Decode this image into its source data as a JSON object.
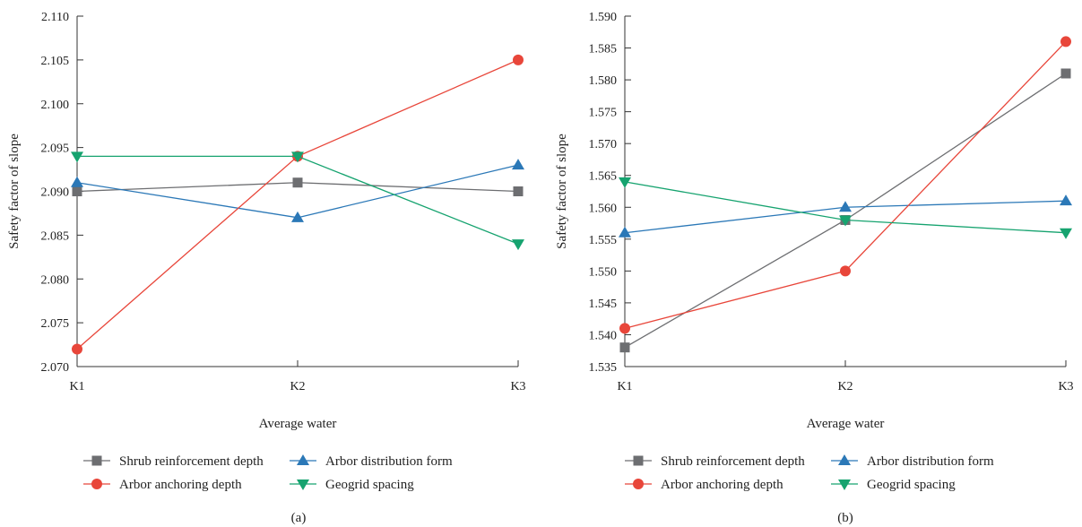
{
  "chart_data": [
    {
      "type": "line",
      "panel_label": "(a)",
      "xlabel": "Average water",
      "ylabel": "Safety factor of slope",
      "categories": [
        "K1",
        "K2",
        "K3"
      ],
      "ylim": [
        2.07,
        2.11
      ],
      "yticks": [
        "2.070",
        "2.075",
        "2.080",
        "2.085",
        "2.090",
        "2.095",
        "2.100",
        "2.105",
        "2.110"
      ],
      "grid": false,
      "legend_position": "bottom",
      "series": [
        {
          "name": "Shrub reinforcement depth",
          "values": [
            2.09,
            2.091,
            2.09
          ],
          "color": "#6d6e71",
          "marker": "square"
        },
        {
          "name": "Arbor distribution form",
          "values": [
            2.091,
            2.087,
            2.093
          ],
          "color": "#2b78b7",
          "marker": "triangle-up"
        },
        {
          "name": "Arbor anchoring depth",
          "values": [
            2.072,
            2.094,
            2.105
          ],
          "color": "#e8463a",
          "marker": "circle"
        },
        {
          "name": "Geogrid spacing",
          "values": [
            2.094,
            2.094,
            2.084
          ],
          "color": "#16a36f",
          "marker": "triangle-down"
        }
      ]
    },
    {
      "type": "line",
      "panel_label": "(b)",
      "xlabel": "Average water",
      "ylabel": "Safety factor of slope",
      "categories": [
        "K1",
        "K2",
        "K3"
      ],
      "ylim": [
        1.535,
        1.59
      ],
      "yticks": [
        "1.535",
        "1.540",
        "1.545",
        "1.550",
        "1.555",
        "1.560",
        "1.565",
        "1.570",
        "1.575",
        "1.580",
        "1.585",
        "1.590"
      ],
      "grid": false,
      "legend_position": "bottom",
      "series": [
        {
          "name": "Shrub reinforcement depth",
          "values": [
            1.538,
            1.558,
            1.581
          ],
          "color": "#6d6e71",
          "marker": "square"
        },
        {
          "name": "Arbor distribution form",
          "values": [
            1.556,
            1.56,
            1.561
          ],
          "color": "#2b78b7",
          "marker": "triangle-up"
        },
        {
          "name": "Arbor anchoring depth",
          "values": [
            1.541,
            1.55,
            1.586
          ],
          "color": "#e8463a",
          "marker": "circle"
        },
        {
          "name": "Geogrid spacing",
          "values": [
            1.564,
            1.558,
            1.556
          ],
          "color": "#16a36f",
          "marker": "triangle-down"
        }
      ]
    }
  ]
}
